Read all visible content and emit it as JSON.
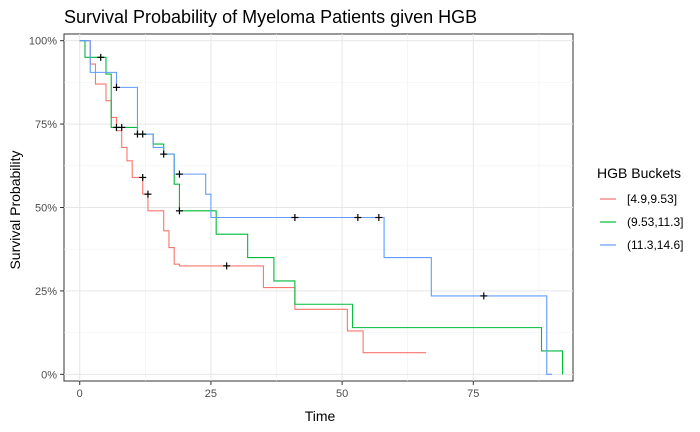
{
  "chart_data": {
    "type": "line",
    "step": true,
    "title": "Survival Probability of Myeloma Patients given HGB",
    "xlabel": "Time",
    "ylabel": "Survival Probability",
    "xlim": [
      -3,
      94
    ],
    "ylim": [
      -0.02,
      1.02
    ],
    "xticks": [
      0,
      25,
      50,
      75
    ],
    "xtick_labels": [
      "0",
      "25",
      "50",
      "75"
    ],
    "yticks": [
      0,
      0.25,
      0.5,
      0.75,
      1.0
    ],
    "ytick_labels": [
      "0%",
      "25%",
      "50%",
      "75%",
      "100%"
    ],
    "grid": true,
    "legend": {
      "title": "HGB Buckets",
      "placement": "right"
    },
    "series": [
      {
        "name": "[4.9,9.53]",
        "color": "#F8766D",
        "x": [
          0,
          2,
          3,
          5,
          6,
          7,
          8,
          9,
          10,
          12,
          13,
          16,
          17,
          18,
          19,
          28,
          35,
          41,
          51,
          53,
          54,
          66
        ],
        "y": [
          1.0,
          0.93,
          0.87,
          0.82,
          0.77,
          0.73,
          0.68,
          0.64,
          0.59,
          0.54,
          0.49,
          0.43,
          0.38,
          0.33,
          0.325,
          0.325,
          0.26,
          0.195,
          0.13,
          0.13,
          0.065,
          0.065
        ],
        "censored": [
          [
            12,
            0.59
          ],
          [
            13,
            0.54
          ],
          [
            28,
            0.325
          ]
        ]
      },
      {
        "name": "(9.53,11.3]",
        "color": "#00BA38",
        "x": [
          0,
          1,
          4,
          5,
          6,
          7,
          11,
          14,
          16,
          18,
          19,
          26,
          32,
          37,
          41,
          51,
          52,
          58,
          88,
          91,
          92
        ],
        "y": [
          1.0,
          0.95,
          0.95,
          0.9,
          0.74,
          0.74,
          0.72,
          0.69,
          0.66,
          0.57,
          0.49,
          0.42,
          0.35,
          0.28,
          0.21,
          0.21,
          0.14,
          0.14,
          0.07,
          0.07,
          0.0
        ],
        "censored": [
          [
            4,
            0.95
          ],
          [
            7,
            0.74
          ],
          [
            8,
            0.74
          ],
          [
            11,
            0.72
          ],
          [
            19,
            0.49
          ]
        ]
      },
      {
        "name": "(11.3,14.6]",
        "color": "#619CFF",
        "x": [
          0,
          2,
          7,
          11,
          14,
          16,
          18,
          24,
          25,
          57,
          58,
          67,
          89,
          90
        ],
        "y": [
          1.0,
          0.905,
          0.86,
          0.72,
          0.68,
          0.66,
          0.6,
          0.54,
          0.47,
          0.47,
          0.35,
          0.235,
          0.0,
          0.0
        ],
        "censored": [
          [
            7,
            0.86
          ],
          [
            12,
            0.72
          ],
          [
            16,
            0.66
          ],
          [
            19,
            0.6
          ],
          [
            41,
            0.47
          ],
          [
            53,
            0.47
          ],
          [
            57,
            0.47
          ],
          [
            77,
            0.235
          ]
        ]
      }
    ]
  }
}
